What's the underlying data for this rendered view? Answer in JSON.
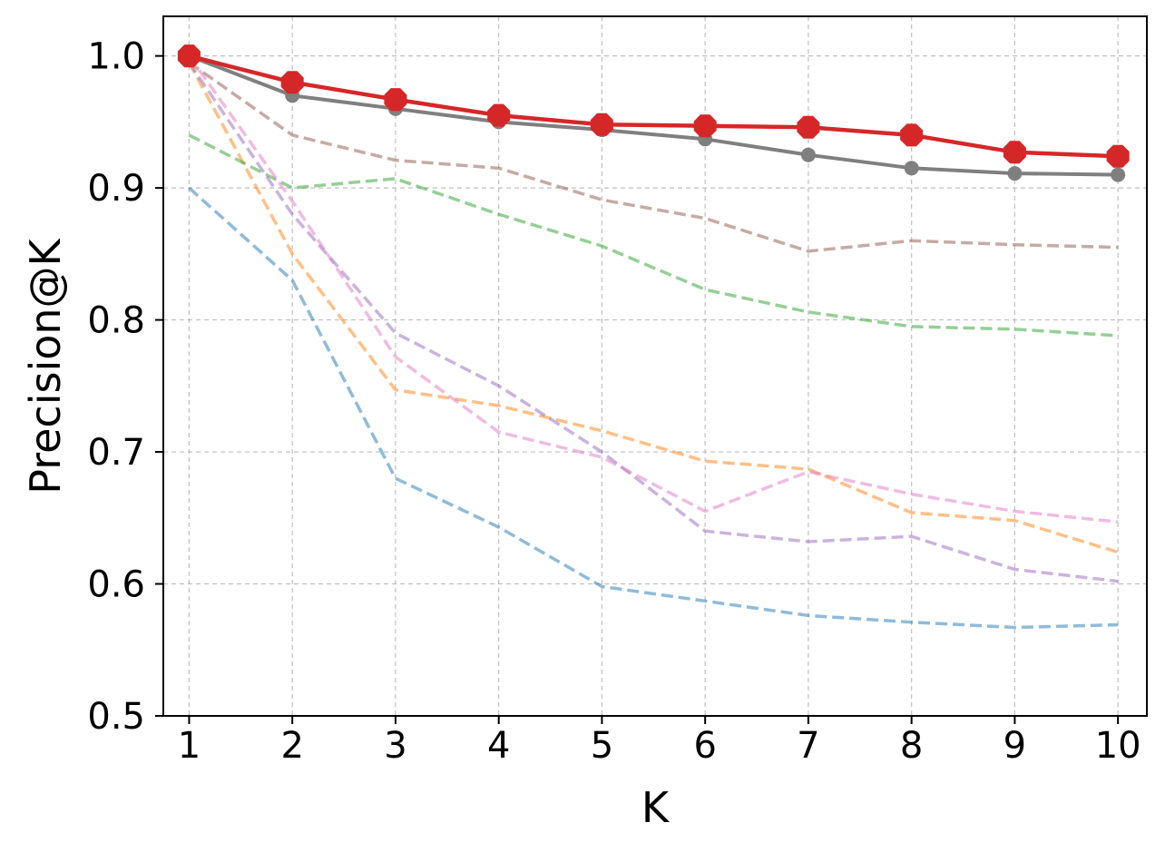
{
  "chart_data": {
    "type": "line",
    "title": "",
    "xlabel": "K",
    "ylabel": "Precision@K",
    "x": [
      1,
      2,
      3,
      4,
      5,
      6,
      7,
      8,
      9,
      10
    ],
    "xlim": [
      0.75,
      10.28
    ],
    "ylim": [
      0.5,
      1.03
    ],
    "xticks": [
      "1",
      "2",
      "3",
      "4",
      "5",
      "6",
      "7",
      "8",
      "9",
      "10"
    ],
    "yticks": [
      "0.5",
      "0.6",
      "0.7",
      "0.8",
      "0.9",
      "1.0"
    ],
    "yticks_values": [
      0.5,
      0.6,
      0.7,
      0.8,
      0.9,
      1.0
    ],
    "grid": true,
    "series": [
      {
        "color": "#1f77b4",
        "style": "dashed",
        "values": [
          0.9,
          0.83,
          0.68,
          0.643,
          0.598,
          0.587,
          0.576,
          0.571,
          0.567,
          0.569
        ]
      },
      {
        "color": "#ff7f0e",
        "style": "dashed",
        "values": [
          0.995,
          0.85,
          0.747,
          0.735,
          0.716,
          0.693,
          0.687,
          0.654,
          0.648,
          0.624
        ]
      },
      {
        "color": "#2ca02c",
        "style": "dashed",
        "values": [
          0.94,
          0.9,
          0.907,
          0.88,
          0.856,
          0.823,
          0.806,
          0.795,
          0.793,
          0.788
        ]
      },
      {
        "color": "#9467bd",
        "style": "dashed",
        "values": [
          0.995,
          0.88,
          0.79,
          0.75,
          0.7,
          0.64,
          0.632,
          0.636,
          0.611,
          0.602
        ]
      },
      {
        "color": "#8c564b",
        "style": "dashed",
        "values": [
          0.995,
          0.94,
          0.921,
          0.915,
          0.891,
          0.877,
          0.852,
          0.86,
          0.857,
          0.855
        ]
      },
      {
        "color": "#e377c2",
        "style": "dashed",
        "values": [
          1.0,
          0.89,
          0.772,
          0.715,
          0.696,
          0.655,
          0.685,
          0.668,
          0.655,
          0.647
        ]
      },
      {
        "color": "#7f7f7f",
        "style": "solid-markers",
        "values": [
          1.0,
          0.97,
          0.96,
          0.95,
          0.944,
          0.937,
          0.925,
          0.915,
          0.911,
          0.91
        ]
      },
      {
        "color": "#d62728",
        "style": "solid-markers-large",
        "values": [
          1.0,
          0.98,
          0.967,
          0.955,
          0.948,
          0.947,
          0.946,
          0.94,
          0.927,
          0.924
        ]
      }
    ]
  }
}
